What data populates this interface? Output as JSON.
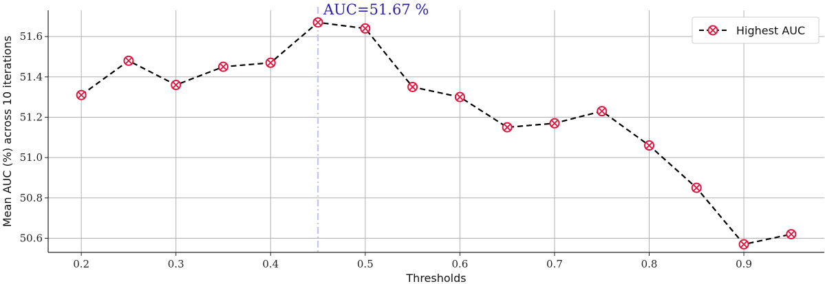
{
  "chart_data": {
    "type": "line",
    "xlabel": "Thresholds",
    "ylabel": "Mean AUC (%) across 10 iterations",
    "xlim": [
      0.165,
      0.985
    ],
    "ylim": [
      50.53,
      51.73
    ],
    "xticks": [
      0.2,
      0.3,
      0.4,
      0.5,
      0.6,
      0.7,
      0.8,
      0.9
    ],
    "xtick_labels": [
      "0.2",
      "0.3",
      "0.4",
      "0.5",
      "0.6",
      "0.7",
      "0.8",
      "0.9"
    ],
    "yticks": [
      50.6,
      50.8,
      51.0,
      51.2,
      51.4,
      51.6
    ],
    "ytick_labels": [
      "50.6",
      "50.8",
      "51.0",
      "51.2",
      "51.4",
      "51.6"
    ],
    "grid": true,
    "legend_position": "top-right",
    "series": [
      {
        "name": "Highest AUC",
        "line_color": "#000000",
        "marker_color": "#e0143c",
        "line_style": "dashed",
        "x": [
          0.2,
          0.25,
          0.3,
          0.35,
          0.4,
          0.45,
          0.5,
          0.55,
          0.6,
          0.65,
          0.7,
          0.75,
          0.8,
          0.85,
          0.9,
          0.95
        ],
        "y": [
          51.31,
          51.48,
          51.36,
          51.45,
          51.47,
          51.67,
          51.64,
          51.35,
          51.3,
          51.15,
          51.17,
          51.23,
          51.06,
          50.85,
          50.57,
          50.62
        ]
      }
    ],
    "annotations": [
      {
        "text": "AUC=51.67 %",
        "x": 0.45,
        "y": 51.67,
        "color": "#2a1fa8",
        "vline_color": "#c8c8e8",
        "vline_style": "dashdot"
      }
    ]
  }
}
